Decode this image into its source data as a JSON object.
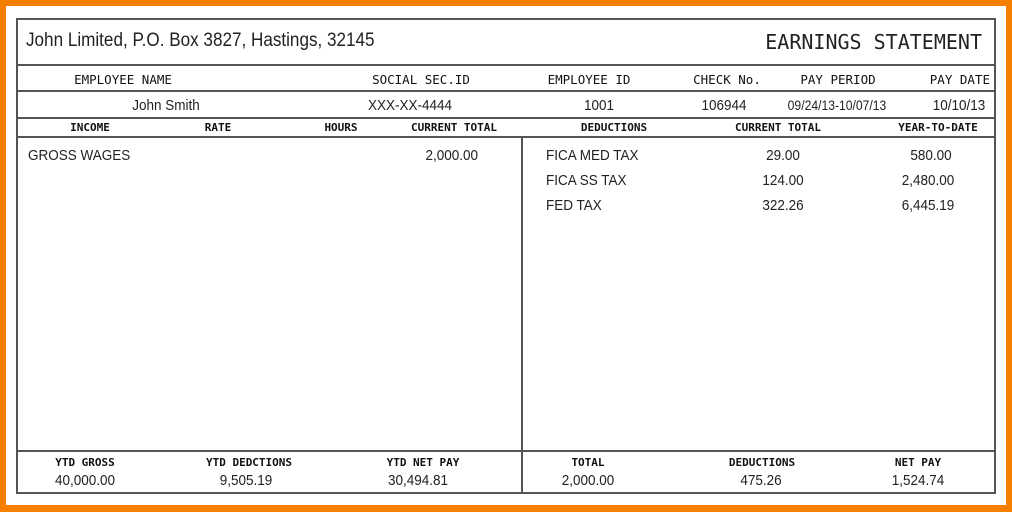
{
  "company": "John Limited, P.O. Box 3827, Hastings, 32145",
  "title": "EARNINGS STATEMENT",
  "employee": {
    "labels": [
      "EMPLOYEE NAME",
      "SOCIAL SEC.ID",
      "EMPLOYEE ID",
      "CHECK No.",
      "PAY PERIOD",
      "PAY DATE"
    ],
    "values": [
      "John Smith",
      "XXX-XX-4444",
      "1001",
      "106944",
      "09/24/13-10/07/13",
      "10/10/13"
    ]
  },
  "income": {
    "headers": [
      "INCOME",
      "RATE",
      "HOURS",
      "CURRENT TOTAL"
    ],
    "rows": [
      {
        "name": "GROSS WAGES",
        "rate": "",
        "hours": "",
        "current": "2,000.00"
      }
    ]
  },
  "deductions": {
    "headers": [
      "DEDUCTIONS",
      "CURRENT TOTAL",
      "YEAR-TO-DATE"
    ],
    "rows": [
      {
        "name": "FICA MED TAX",
        "current": "29.00",
        "ytd": "580.00"
      },
      {
        "name": "FICA SS TAX",
        "current": "124.00",
        "ytd": "2,480.00"
      },
      {
        "name": "FED TAX",
        "current": "322.26",
        "ytd": "6,445.19"
      }
    ]
  },
  "summary": [
    {
      "label": "YTD GROSS",
      "value": "40,000.00"
    },
    {
      "label": "YTD DEDCTIONS",
      "value": "9,505.19"
    },
    {
      "label": "YTD NET PAY",
      "value": "30,494.81"
    },
    {
      "label": "TOTAL",
      "value": "2,000.00"
    },
    {
      "label": "DEDUCTIONS",
      "value": "475.26"
    },
    {
      "label": "NET PAY",
      "value": "1,524.74"
    }
  ],
  "colors": {
    "frame": "#f77f00",
    "lines": "#555555"
  }
}
